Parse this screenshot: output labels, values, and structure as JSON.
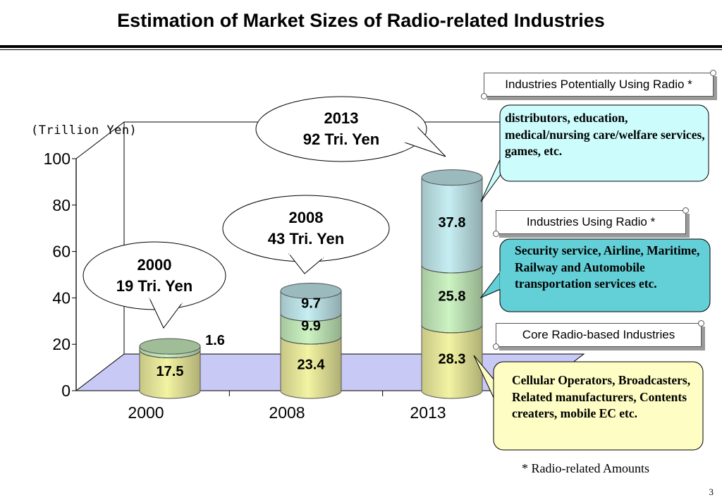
{
  "page": {
    "title": "Estimation of Market Sizes of Radio-related Industries",
    "page_number": "3",
    "footnote": "* Radio-related Amounts"
  },
  "legend": {
    "potential": {
      "label": "Industries Potentially Using Radio *",
      "description": "distributors, education, medical/nursing care/welfare services, games, etc."
    },
    "using": {
      "label": "Industries Using Radio *",
      "description": "Security service, Airline, Maritime, Railway and Automobile transportation services etc."
    },
    "core": {
      "label": "Core Radio-based Industries",
      "description": "Cellular Operators, Broadcasters, Related manufacturers, Contents creaters, mobile EC etc."
    }
  },
  "colors": {
    "core": "#f3f3a3",
    "using": "#ccf3c2",
    "potential": "#c6eef2",
    "floor": "#c9c9f6",
    "box_potential": "#ccfcfc",
    "box_using": "#63cfd6",
    "box_core": "#fdfdc4"
  },
  "chart_data": {
    "type": "bar",
    "stacked": true,
    "three_d": true,
    "unit_label": "(Trillion Yen)",
    "categories": [
      "2000",
      "2008",
      "2013"
    ],
    "ylim": [
      0,
      100
    ],
    "yticks": [
      "0",
      "20",
      "40",
      "60",
      "80",
      "100"
    ],
    "series": [
      {
        "key": "core",
        "values": [
          17.5,
          23.4,
          28.3
        ],
        "labels": [
          "17.5",
          "23.4",
          "28.3"
        ]
      },
      {
        "key": "using",
        "values": [
          1.6,
          9.9,
          25.8
        ],
        "labels": [
          "1.6",
          "9.9",
          "25.8"
        ]
      },
      {
        "key": "potential",
        "values": [
          0,
          9.7,
          37.8
        ],
        "labels": [
          "",
          "9.7",
          "37.8"
        ]
      }
    ],
    "callouts": [
      {
        "year": "2000",
        "total": "19 Tri. Yen"
      },
      {
        "year": "2008",
        "total": "43 Tri. Yen"
      },
      {
        "year": "2013",
        "total": "92 Tri. Yen"
      }
    ]
  }
}
